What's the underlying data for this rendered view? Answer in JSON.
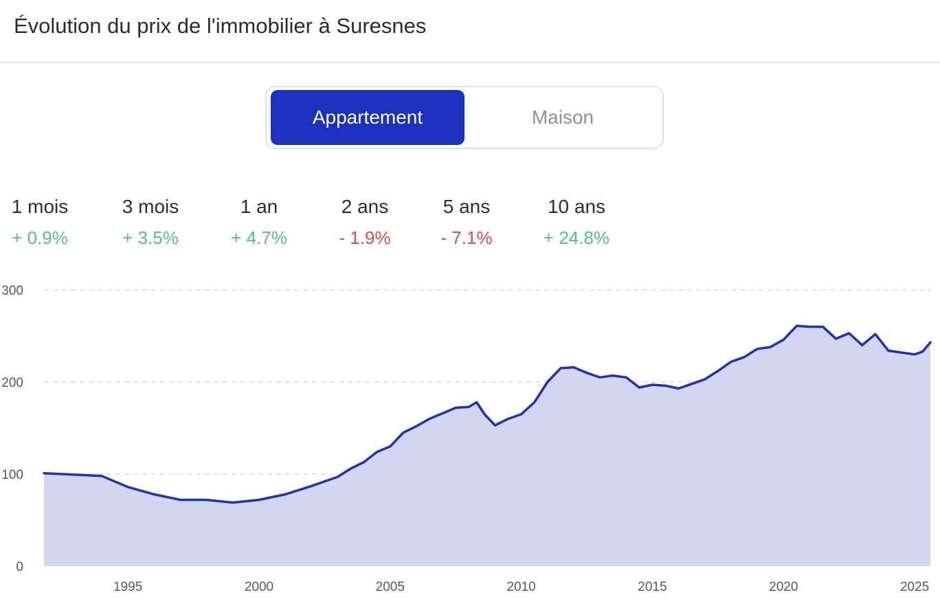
{
  "header": {
    "title": "Évolution du prix de l'immobilier à Suresnes"
  },
  "toggle": {
    "active_label": "Appartement",
    "inactive_label": "Maison"
  },
  "stats": [
    {
      "label": "1 mois",
      "value": "+ 0.9%",
      "trend": "up"
    },
    {
      "label": "3 mois",
      "value": "+ 3.5%",
      "trend": "up"
    },
    {
      "label": "1 an",
      "value": "+ 4.7%",
      "trend": "up"
    },
    {
      "label": "2 ans",
      "value": "- 1.9%",
      "trend": "down"
    },
    {
      "label": "5 ans",
      "value": "- 7.1%",
      "trend": "down"
    },
    {
      "label": "10 ans",
      "value": "+ 24.8%",
      "trend": "up"
    }
  ],
  "colors": {
    "accent": "#1b31bf",
    "area_fill": "#d2d6f1",
    "positive": "#4fc293",
    "negative": "#e34b3f"
  },
  "chart_data": {
    "type": "area",
    "title": "",
    "xlabel": "",
    "ylabel": "",
    "ylim": [
      0,
      300
    ],
    "xlim": [
      1991.8,
      2025.6
    ],
    "yticks": [
      0,
      100,
      200,
      300
    ],
    "ytick_labels": [
      "0",
      "100",
      "200",
      "300"
    ],
    "xticks": [
      1995,
      2000,
      2005,
      2010,
      2015,
      2020,
      2025
    ],
    "grid": true,
    "series": [
      {
        "x": [
          1991.8,
          1994.0,
          1995.0,
          1996.0,
          1997.0,
          1998.0,
          1999.0,
          2000.0,
          2001.0,
          2002.0,
          2003.0,
          2003.5,
          2004.0,
          2004.5,
          2005.0,
          2005.5,
          2006.0,
          2006.5,
          2007.0,
          2007.5,
          2008.0,
          2008.3,
          2008.6,
          2009.0,
          2009.5,
          2010.0,
          2010.5,
          2011.0,
          2011.5,
          2012.0,
          2012.5,
          2013.0,
          2013.5,
          2014.0,
          2014.5,
          2015.0,
          2015.5,
          2016.0,
          2016.5,
          2017.0,
          2017.5,
          2018.0,
          2018.5,
          2019.0,
          2019.5,
          2020.0,
          2020.5,
          2021.0,
          2021.5,
          2022.0,
          2022.5,
          2023.0,
          2023.5,
          2024.0,
          2024.5,
          2025.0,
          2025.3,
          2025.6
        ],
        "values": [
          101,
          98,
          86,
          78,
          72,
          72,
          69,
          72,
          78,
          87,
          97,
          106,
          113,
          124,
          130,
          145,
          152,
          160,
          166,
          172,
          173,
          178,
          165,
          153,
          160,
          165,
          178,
          200,
          215,
          216,
          210,
          205,
          207,
          205,
          194,
          197,
          196,
          193,
          198,
          203,
          212,
          222,
          227,
          236,
          238,
          246,
          261,
          260,
          260,
          247,
          253,
          240,
          252,
          234,
          232,
          230,
          233,
          243
        ]
      }
    ]
  }
}
